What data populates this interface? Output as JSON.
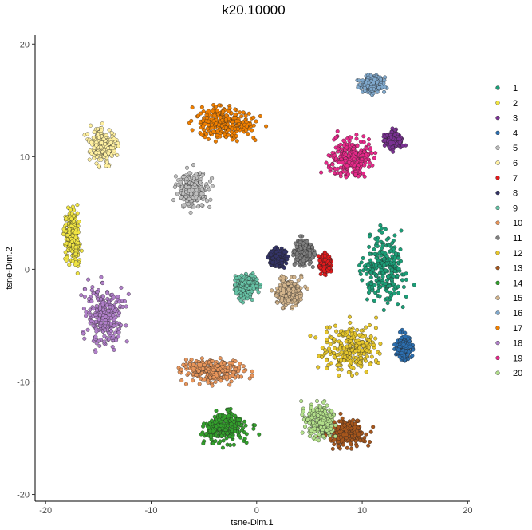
{
  "chart_data": {
    "type": "scatter",
    "title": "k20.10000",
    "xlabel": "tsne-Dim.1",
    "ylabel": "tsne-Dim.2",
    "xlim": [
      -21,
      20.2
    ],
    "ylim": [
      -20.6,
      20.8
    ],
    "x_ticks": [
      -20,
      -10,
      0,
      10,
      20
    ],
    "y_ticks": [
      -20,
      -10,
      0,
      10,
      20
    ],
    "x_tick_labels": [
      "-20",
      "-10",
      "0",
      "10",
      "20"
    ],
    "y_tick_labels": [
      "-20",
      "-10",
      "0",
      "10",
      "20"
    ],
    "grid": false,
    "legend_position": "right",
    "series": [
      {
        "name": "1",
        "color": "#1b9e77",
        "center": [
          12.0,
          0.0
        ],
        "spread": [
          3.0,
          4.0
        ]
      },
      {
        "name": "2",
        "color": "#f0e442",
        "center": [
          -17.5,
          3.0
        ],
        "spread": [
          1.0,
          3.0
        ]
      },
      {
        "name": "3",
        "color": "#7b3294",
        "center": [
          13.0,
          11.5
        ],
        "spread": [
          1.0,
          1.0
        ]
      },
      {
        "name": "4",
        "color": "#2c6fb0",
        "center": [
          14.0,
          -7.0
        ],
        "spread": [
          1.0,
          1.5
        ]
      },
      {
        "name": "5",
        "color": "#bdbdbd",
        "center": [
          -6.0,
          7.0
        ],
        "spread": [
          2.0,
          2.0
        ]
      },
      {
        "name": "6",
        "color": "#fff0a0",
        "center": [
          -14.5,
          11.0
        ],
        "spread": [
          1.8,
          2.0
        ]
      },
      {
        "name": "7",
        "color": "#e31a1c",
        "center": [
          6.5,
          0.5
        ],
        "spread": [
          0.7,
          1.2
        ]
      },
      {
        "name": "8",
        "color": "#333366",
        "center": [
          2.0,
          1.0
        ],
        "spread": [
          1.0,
          1.0
        ]
      },
      {
        "name": "9",
        "color": "#66c2a5",
        "center": [
          -1.0,
          -1.5
        ],
        "spread": [
          1.5,
          1.5
        ]
      },
      {
        "name": "10",
        "color": "#e8955a",
        "center": [
          -4.0,
          -9.0
        ],
        "spread": [
          4.0,
          1.5
        ]
      },
      {
        "name": "11",
        "color": "#7f7f7f",
        "center": [
          4.5,
          1.5
        ],
        "spread": [
          1.2,
          1.5
        ]
      },
      {
        "name": "12",
        "color": "#e6c62c",
        "center": [
          9.0,
          -7.0
        ],
        "spread": [
          3.5,
          3.0
        ]
      },
      {
        "name": "13",
        "color": "#a6561c",
        "center": [
          8.5,
          -14.5
        ],
        "spread": [
          2.5,
          1.5
        ]
      },
      {
        "name": "14",
        "color": "#33a02c",
        "center": [
          -3.0,
          -14.0
        ],
        "spread": [
          3.0,
          2.0
        ]
      },
      {
        "name": "15",
        "color": "#d2b48c",
        "center": [
          3.0,
          -2.0
        ],
        "spread": [
          1.6,
          1.6
        ]
      },
      {
        "name": "16",
        "color": "#7fa8cc",
        "center": [
          11.0,
          16.5
        ],
        "spread": [
          1.5,
          1.0
        ]
      },
      {
        "name": "17",
        "color": "#f07f00",
        "center": [
          -3.0,
          13.0
        ],
        "spread": [
          4.0,
          2.0
        ]
      },
      {
        "name": "18",
        "color": "#b07fc9",
        "center": [
          -14.5,
          -4.0
        ],
        "spread": [
          2.5,
          3.5
        ]
      },
      {
        "name": "19",
        "color": "#e7298a",
        "center": [
          9.0,
          10.0
        ],
        "spread": [
          3.0,
          2.5
        ]
      },
      {
        "name": "20",
        "color": "#b2df8a",
        "center": [
          6.0,
          -13.5
        ],
        "spread": [
          2.0,
          2.0
        ]
      }
    ]
  }
}
